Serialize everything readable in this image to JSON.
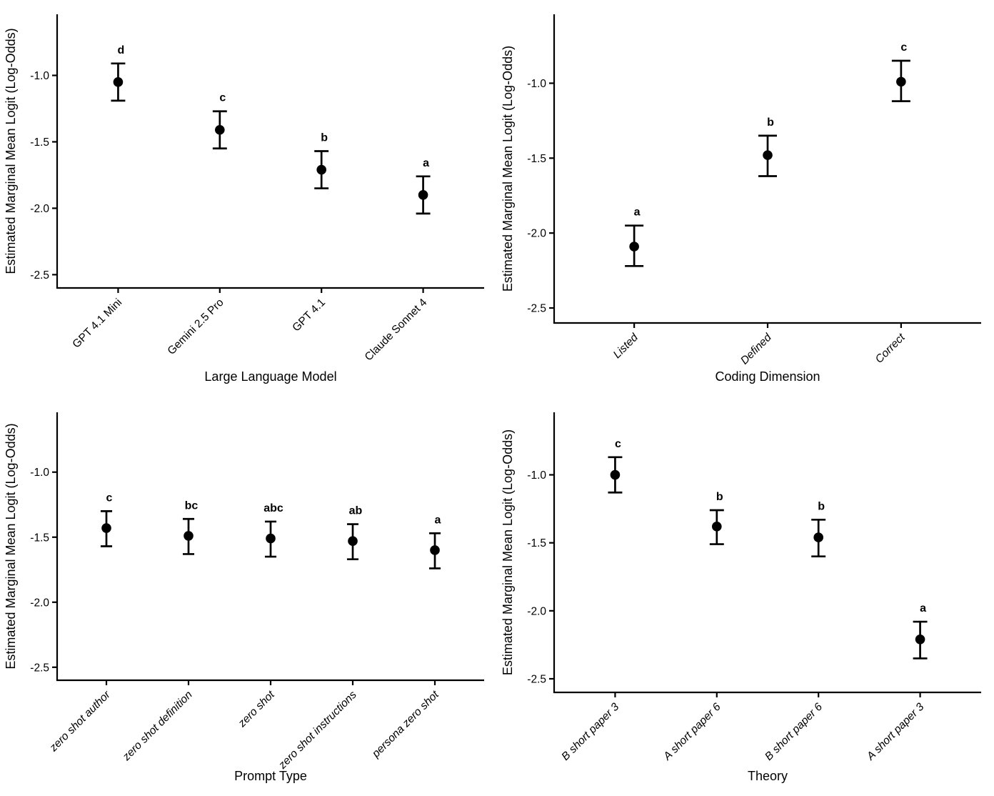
{
  "page": {
    "background": "#ffffff",
    "foreground": "#000000"
  },
  "chart_data": [
    {
      "type": "scatter",
      "subtype": "pointrange",
      "title": "",
      "xlabel": "Large Language Model",
      "ylabel": "Estimated Marginal Mean Logit (Log-Odds)",
      "ylim": [
        -2.6,
        -0.54
      ],
      "yticks": [
        -1.0,
        -1.5,
        -2.0,
        -2.5
      ],
      "ytick_labels": [
        "-1.0",
        "-1.5",
        "-2.0",
        "-2.5"
      ],
      "grid": false,
      "legend": false,
      "point_color": "#000000",
      "x_tick_style": "normal",
      "categories": [
        "GPT 4.1 Mini",
        "Gemini 2.5 Pro",
        "GPT 4.1",
        "Claude Sonnet 4"
      ],
      "points": [
        {
          "category": "GPT 4.1 Mini",
          "mean": -1.05,
          "ci_low": -1.19,
          "ci_high": -0.91,
          "letter": "d"
        },
        {
          "category": "Gemini 2.5 Pro",
          "mean": -1.41,
          "ci_low": -1.55,
          "ci_high": -1.27,
          "letter": "c"
        },
        {
          "category": "GPT 4.1",
          "mean": -1.71,
          "ci_low": -1.85,
          "ci_high": -1.57,
          "letter": "b"
        },
        {
          "category": "Claude Sonnet 4",
          "mean": -1.9,
          "ci_low": -2.04,
          "ci_high": -1.76,
          "letter": "a"
        }
      ]
    },
    {
      "type": "scatter",
      "subtype": "pointrange",
      "title": "",
      "xlabel": "Coding Dimension",
      "ylabel": "Estimated Marginal Mean Logit (Log-Odds)",
      "ylim": [
        -2.6,
        -0.54
      ],
      "yticks": [
        -1.0,
        -1.5,
        -2.0,
        -2.5
      ],
      "ytick_labels": [
        "-1.0",
        "-1.5",
        "-2.0",
        "-2.5"
      ],
      "grid": false,
      "legend": false,
      "point_color": "#000000",
      "x_tick_style": "italic",
      "categories": [
        "Listed",
        "Defined",
        "Correct"
      ],
      "points": [
        {
          "category": "Listed",
          "mean": -2.09,
          "ci_low": -2.22,
          "ci_high": -1.95,
          "letter": "a"
        },
        {
          "category": "Defined",
          "mean": -1.48,
          "ci_low": -1.62,
          "ci_high": -1.35,
          "letter": "b"
        },
        {
          "category": "Correct",
          "mean": -0.99,
          "ci_low": -1.12,
          "ci_high": -0.85,
          "letter": "c"
        }
      ]
    },
    {
      "type": "scatter",
      "subtype": "pointrange",
      "title": "",
      "xlabel": "Prompt Type",
      "ylabel": "Estimated Marginal Mean Logit (Log-Odds)",
      "ylim": [
        -2.6,
        -0.54
      ],
      "yticks": [
        -1.0,
        -1.5,
        -2.0,
        -2.5
      ],
      "ytick_labels": [
        "-1.0",
        "-1.5",
        "-2.0",
        "-2.5"
      ],
      "grid": false,
      "legend": false,
      "point_color": "#000000",
      "x_tick_style": "italic",
      "categories": [
        "zero shot author",
        "zero shot definition",
        "zero shot",
        "zero shot instructions",
        "persona zero shot"
      ],
      "points": [
        {
          "category": "zero shot author",
          "mean": -1.43,
          "ci_low": -1.57,
          "ci_high": -1.3,
          "letter": "c"
        },
        {
          "category": "zero shot definition",
          "mean": -1.49,
          "ci_low": -1.63,
          "ci_high": -1.36,
          "letter": "bc"
        },
        {
          "category": "zero shot",
          "mean": -1.51,
          "ci_low": -1.65,
          "ci_high": -1.38,
          "letter": "abc"
        },
        {
          "category": "zero shot instructions",
          "mean": -1.53,
          "ci_low": -1.67,
          "ci_high": -1.4,
          "letter": "ab"
        },
        {
          "category": "persona zero shot",
          "mean": -1.6,
          "ci_low": -1.74,
          "ci_high": -1.47,
          "letter": "a"
        }
      ]
    },
    {
      "type": "scatter",
      "subtype": "pointrange",
      "title": "",
      "xlabel": "Theory",
      "ylabel": "Estimated Marginal Mean Logit (Log-Odds)",
      "ylim": [
        -2.6,
        -0.54
      ],
      "yticks": [
        -1.0,
        -1.5,
        -2.0,
        -2.5
      ],
      "ytick_labels": [
        "-1.0",
        "-1.5",
        "-2.0",
        "-2.5"
      ],
      "grid": false,
      "legend": false,
      "point_color": "#000000",
      "x_tick_style": "italic",
      "categories": [
        "B short paper 3",
        "A short paper 6",
        "B short paper 6",
        "A short paper 3"
      ],
      "points": [
        {
          "category": "B short paper 3",
          "mean": -1.0,
          "ci_low": -1.13,
          "ci_high": -0.87,
          "letter": "c"
        },
        {
          "category": "A short paper 6",
          "mean": -1.38,
          "ci_low": -1.51,
          "ci_high": -1.26,
          "letter": "b"
        },
        {
          "category": "B short paper 6",
          "mean": -1.46,
          "ci_low": -1.6,
          "ci_high": -1.33,
          "letter": "b"
        },
        {
          "category": "A short paper 3",
          "mean": -2.21,
          "ci_low": -2.35,
          "ci_high": -2.08,
          "letter": "a"
        }
      ]
    }
  ]
}
